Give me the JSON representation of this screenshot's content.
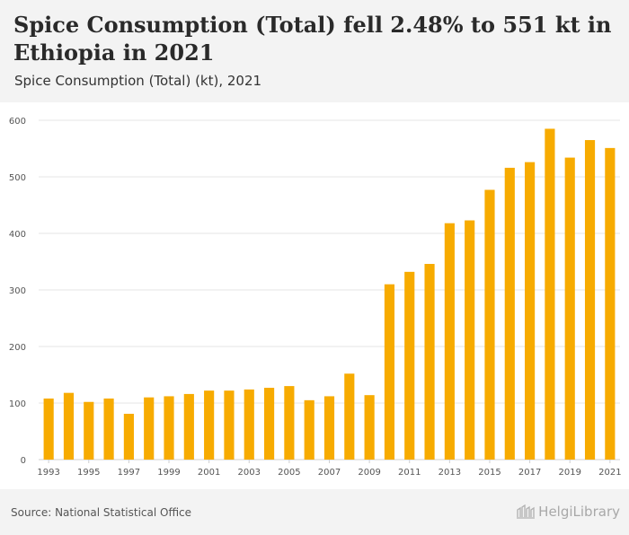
{
  "header": {
    "title": "Spice Consumption (Total) fell 2.48% to 551 kt in Ethiopia in 2021",
    "subtitle": "Spice Consumption (Total) (kt), 2021"
  },
  "footer": {
    "source": "Source: National Statistical Office",
    "logo_text": "HelgiLibrary"
  },
  "colors": {
    "bar": "#f7ab00",
    "grid": "#e4e4e4",
    "axis_text": "#555555"
  },
  "chart_data": {
    "type": "bar",
    "title": "Spice Consumption (Total) fell 2.48% to 551 kt in Ethiopia in 2021",
    "subtitle": "Spice Consumption (Total) (kt), 2021",
    "xlabel": "",
    "ylabel": "",
    "ylim": [
      0,
      600
    ],
    "yticks": [
      0,
      100,
      200,
      300,
      400,
      500,
      600
    ],
    "categories": [
      "1993",
      "1994",
      "1995",
      "1996",
      "1997",
      "1998",
      "1999",
      "2000",
      "2001",
      "2002",
      "2003",
      "2004",
      "2005",
      "2006",
      "2007",
      "2008",
      "2009",
      "2010",
      "2011",
      "2012",
      "2013",
      "2014",
      "2015",
      "2016",
      "2017",
      "2018",
      "2019",
      "2020",
      "2021"
    ],
    "xtick_labels": [
      "1993",
      "1995",
      "1997",
      "1999",
      "2001",
      "2003",
      "2005",
      "2007",
      "2009",
      "2011",
      "2013",
      "2015",
      "2017",
      "2019",
      "2021"
    ],
    "values": [
      108,
      118,
      102,
      108,
      81,
      110,
      112,
      116,
      122,
      122,
      124,
      127,
      130,
      105,
      112,
      152,
      114,
      310,
      332,
      346,
      418,
      423,
      477,
      516,
      526,
      585,
      534,
      565,
      551
    ]
  }
}
